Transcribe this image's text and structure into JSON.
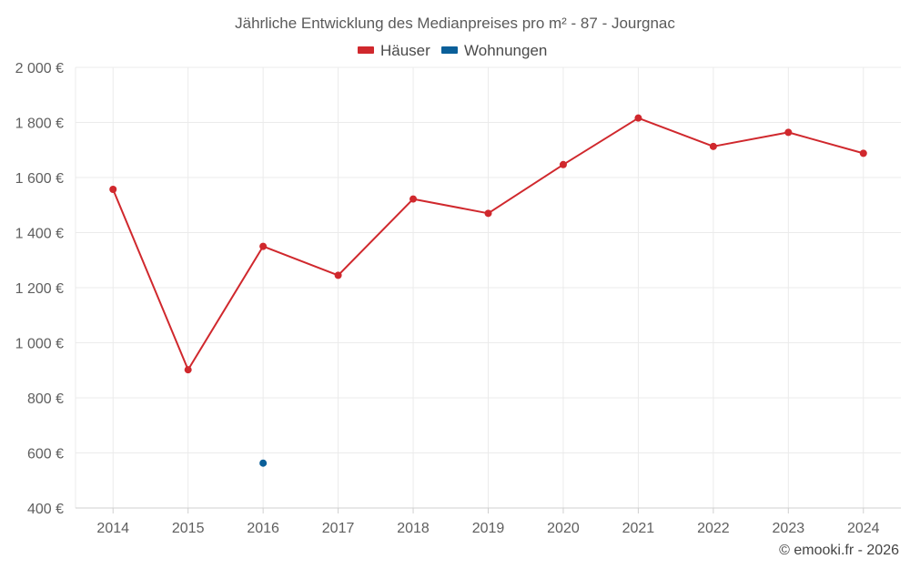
{
  "chart_data": {
    "type": "line",
    "title": "Jährliche Entwicklung des Medianpreises pro m² - 87 - Jourgnac",
    "categories": [
      "2014",
      "2015",
      "2016",
      "2017",
      "2018",
      "2019",
      "2020",
      "2021",
      "2022",
      "2023",
      "2024"
    ],
    "y_tick_labels": [
      "400 €",
      "600 €",
      "800 €",
      "1 000 €",
      "1 200 €",
      "1 400 €",
      "1 600 €",
      "1 800 €",
      "2 000 €"
    ],
    "y_ticks": [
      400,
      600,
      800,
      1000,
      1200,
      1400,
      1600,
      1800,
      2000
    ],
    "ylim": [
      400,
      2000
    ],
    "grid": true,
    "legend_position": "top-center",
    "series": [
      {
        "name": "Häuser",
        "color": "#d0282d",
        "values": [
          1557,
          902,
          1350,
          1245,
          1522,
          1470,
          1647,
          1816,
          1713,
          1764,
          1688
        ]
      },
      {
        "name": "Wohnungen",
        "color": "#0a5f99",
        "values": [
          null,
          null,
          563,
          null,
          null,
          null,
          null,
          null,
          null,
          null,
          null
        ]
      }
    ],
    "credit": "© emooki.fr - 2026"
  }
}
